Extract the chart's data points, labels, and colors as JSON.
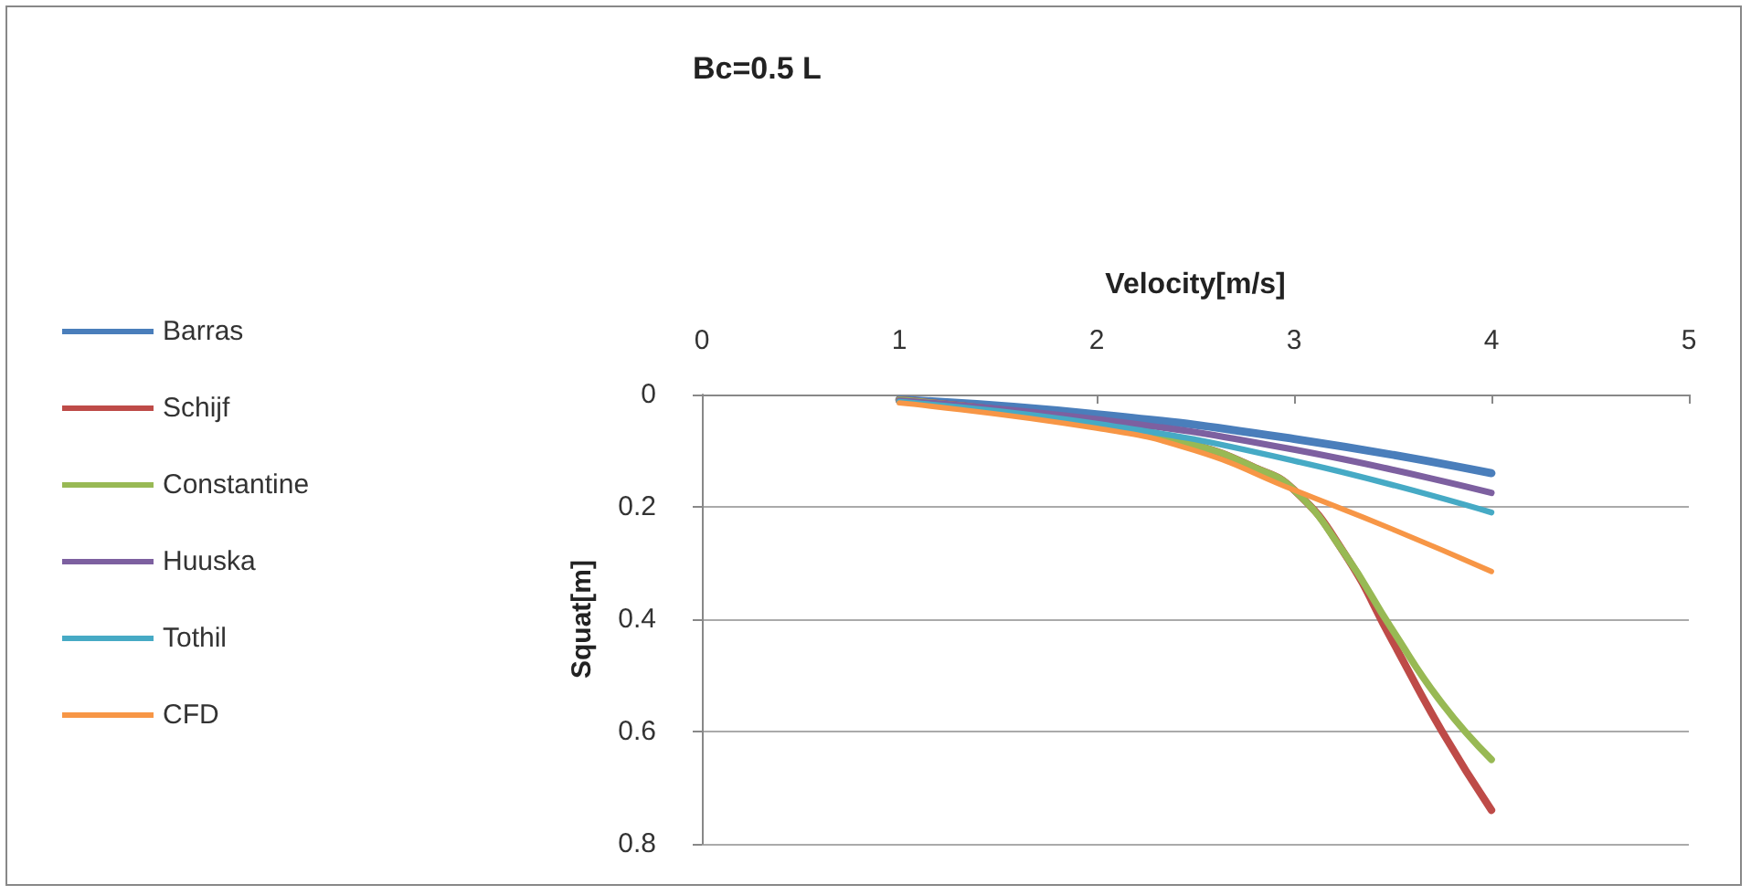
{
  "chart_data": {
    "type": "line",
    "title": "Bc=0.5 L",
    "xlabel": "Velocity[m/s]",
    "ylabel": "Squat[m]",
    "xlim": [
      0,
      5
    ],
    "xticks": [
      0,
      1,
      2,
      3,
      4,
      5
    ],
    "ylim": [
      0.8,
      0
    ],
    "yticks": [
      0,
      0.2,
      0.4,
      0.6,
      0.8
    ],
    "grid": "y",
    "legend": "left",
    "marker": "none",
    "line_style": "solid",
    "series": [
      {
        "name": "Barras",
        "color": "#4a7ebb",
        "x": [
          1,
          2,
          3,
          4
        ],
        "values": [
          0.009,
          0.035,
          0.079,
          0.14
        ]
      },
      {
        "name": "Schijf",
        "color": "#be4b48",
        "x": [
          1,
          2,
          2.5,
          2.8,
          3,
          3.25,
          3.5,
          3.75,
          4
        ],
        "values": [
          0.01,
          0.05,
          0.09,
          0.13,
          0.17,
          0.28,
          0.44,
          0.6,
          0.74
        ]
      },
      {
        "name": "Constantine",
        "color": "#98b954",
        "x": [
          1,
          2,
          2.5,
          2.8,
          3,
          3.25,
          3.5,
          3.75,
          4
        ],
        "values": [
          0.01,
          0.05,
          0.09,
          0.13,
          0.17,
          0.28,
          0.42,
          0.55,
          0.65
        ]
      },
      {
        "name": "Huuska",
        "color": "#7d60a0",
        "x": [
          1,
          2,
          3,
          4
        ],
        "values": [
          0.011,
          0.044,
          0.098,
          0.175
        ]
      },
      {
        "name": "Tothil",
        "color": "#46aac5",
        "x": [
          1,
          2,
          3,
          4
        ],
        "values": [
          0.013,
          0.052,
          0.118,
          0.21
        ]
      },
      {
        "name": "CFD",
        "color": "#f79646",
        "x": [
          1,
          2,
          2.5,
          3,
          3.5,
          4
        ],
        "values": [
          0.015,
          0.06,
          0.1,
          0.17,
          0.24,
          0.315
        ]
      }
    ]
  }
}
